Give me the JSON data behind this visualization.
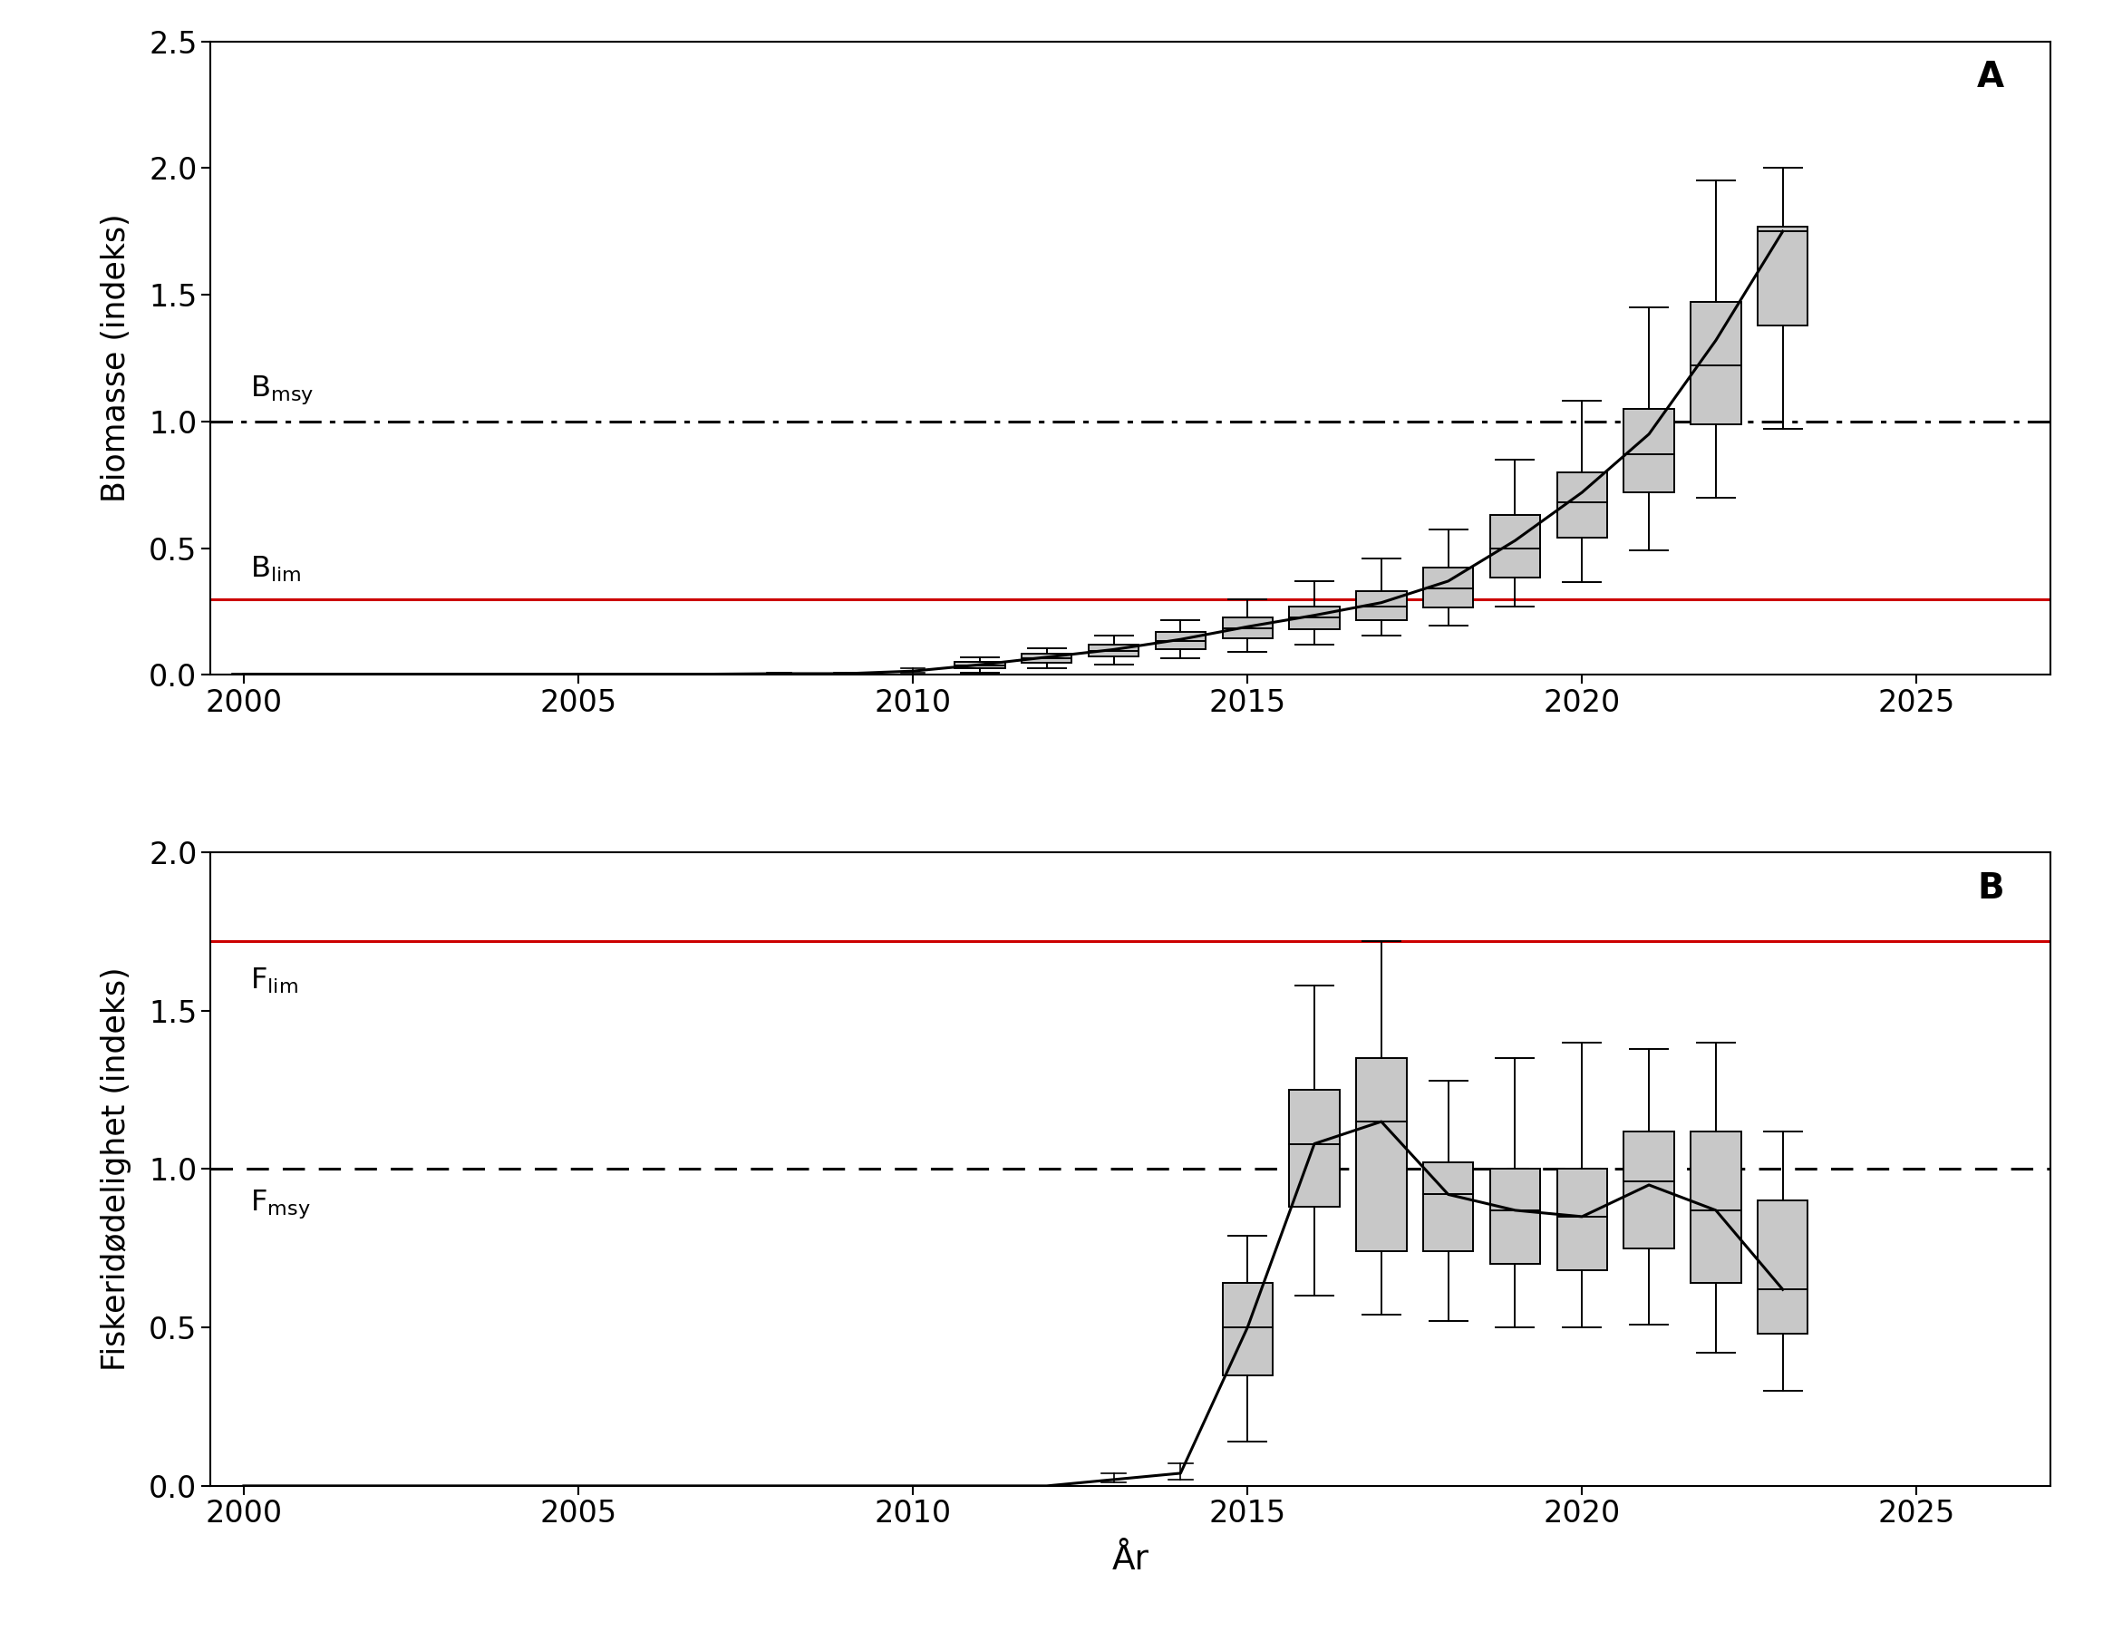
{
  "panel_A": {
    "title_label": "A",
    "ylabel": "Biomasse (indeks)",
    "ylim": [
      0.0,
      2.5
    ],
    "yticks": [
      0.0,
      0.5,
      1.0,
      1.5,
      2.0,
      2.5
    ],
    "bmsy": 1.0,
    "blim": 0.3,
    "line_years": [
      2000,
      2001,
      2002,
      2003,
      2004,
      2005,
      2006,
      2007,
      2008,
      2009,
      2010,
      2011,
      2012,
      2013,
      2014,
      2015,
      2016,
      2017,
      2018,
      2019,
      2020,
      2021,
      2022,
      2023
    ],
    "line_values": [
      0.003,
      0.003,
      0.003,
      0.003,
      0.003,
      0.003,
      0.003,
      0.003,
      0.005,
      0.005,
      0.015,
      0.04,
      0.07,
      0.1,
      0.14,
      0.19,
      0.235,
      0.285,
      0.37,
      0.53,
      0.72,
      0.95,
      1.32,
      1.75
    ],
    "box_years": [
      2011,
      2012,
      2013,
      2014,
      2015,
      2016,
      2017,
      2018,
      2019,
      2020,
      2021,
      2022,
      2023
    ],
    "box_medians": [
      0.038,
      0.065,
      0.095,
      0.135,
      0.185,
      0.225,
      0.27,
      0.34,
      0.5,
      0.68,
      0.87,
      1.22,
      1.75
    ],
    "box_q1": [
      0.025,
      0.048,
      0.072,
      0.1,
      0.145,
      0.18,
      0.215,
      0.265,
      0.385,
      0.54,
      0.72,
      0.99,
      1.38
    ],
    "box_q3": [
      0.052,
      0.084,
      0.118,
      0.17,
      0.225,
      0.27,
      0.33,
      0.425,
      0.63,
      0.8,
      1.05,
      1.47,
      1.77
    ],
    "box_whisker_low": [
      0.01,
      0.025,
      0.042,
      0.065,
      0.09,
      0.12,
      0.155,
      0.195,
      0.27,
      0.365,
      0.49,
      0.7,
      0.97
    ],
    "box_whisker_high": [
      0.07,
      0.105,
      0.155,
      0.215,
      0.3,
      0.37,
      0.46,
      0.575,
      0.85,
      1.08,
      1.45,
      1.95,
      2.0
    ],
    "ci_low": [
      0.002,
      0.002,
      0.002,
      0.002,
      0.002,
      0.002,
      0.002,
      0.002,
      0.003,
      0.003,
      0.008,
      0.022,
      0.045,
      0.07,
      0.095,
      0.13,
      0.165,
      0.205,
      0.28,
      0.42,
      0.57,
      0.75,
      1.02,
      1.38
    ],
    "ci_high": [
      0.005,
      0.005,
      0.005,
      0.005,
      0.005,
      0.005,
      0.005,
      0.005,
      0.008,
      0.008,
      0.025,
      0.058,
      0.095,
      0.13,
      0.175,
      0.245,
      0.305,
      0.37,
      0.48,
      0.65,
      0.9,
      1.15,
      1.6,
      2.0
    ]
  },
  "panel_B": {
    "title_label": "B",
    "ylabel": "Fiskeridødelighet (indeks)",
    "ylim": [
      0.0,
      2.0
    ],
    "yticks": [
      0.0,
      0.5,
      1.0,
      1.5,
      2.0
    ],
    "flim": 1.72,
    "fmsy": 1.0,
    "line_years": [
      2000,
      2001,
      2002,
      2003,
      2004,
      2005,
      2006,
      2007,
      2008,
      2009,
      2010,
      2011,
      2012,
      2013,
      2014,
      2015,
      2016,
      2017,
      2018,
      2019,
      2020,
      2021,
      2022,
      2023
    ],
    "line_values": [
      0.0,
      0.0,
      0.0,
      0.0,
      0.0,
      0.0,
      0.0,
      0.0,
      0.0,
      0.0,
      0.0,
      0.0,
      0.0,
      0.02,
      0.04,
      0.5,
      1.08,
      1.15,
      0.92,
      0.87,
      0.85,
      0.95,
      0.87,
      0.62
    ],
    "box_years": [
      2015,
      2016,
      2017,
      2018,
      2019,
      2020,
      2021,
      2022,
      2023
    ],
    "box_medians": [
      0.5,
      1.08,
      1.15,
      0.92,
      0.87,
      0.85,
      0.96,
      0.87,
      0.62
    ],
    "box_q1": [
      0.35,
      0.88,
      0.74,
      0.74,
      0.7,
      0.68,
      0.75,
      0.64,
      0.48
    ],
    "box_q3": [
      0.64,
      1.25,
      1.35,
      1.02,
      1.0,
      1.0,
      1.12,
      1.12,
      0.9
    ],
    "box_whisker_low": [
      0.14,
      0.6,
      0.54,
      0.52,
      0.5,
      0.5,
      0.51,
      0.42,
      0.3
    ],
    "box_whisker_high": [
      0.79,
      1.58,
      1.72,
      1.28,
      1.35,
      1.4,
      1.38,
      1.4,
      1.12
    ],
    "ci_low": [
      0.0,
      0.0,
      0.0,
      0.0,
      0.0,
      0.0,
      0.0,
      0.0,
      0.0,
      0.0,
      0.0,
      0.0,
      0.0,
      0.01,
      0.02,
      0.34,
      0.87,
      0.94,
      0.74,
      0.7,
      0.67,
      0.77,
      0.69,
      0.47
    ],
    "ci_high": [
      0.0,
      0.0,
      0.0,
      0.0,
      0.0,
      0.0,
      0.0,
      0.0,
      0.0,
      0.0,
      0.0,
      0.0,
      0.0,
      0.04,
      0.07,
      0.64,
      1.27,
      1.37,
      1.11,
      1.07,
      1.04,
      1.14,
      1.07,
      0.81
    ]
  },
  "xlim": [
    1999.5,
    2027
  ],
  "xticks": [
    2000,
    2005,
    2010,
    2015,
    2020,
    2025
  ],
  "xlabel": "År",
  "box_width": 0.75,
  "box_color": "#c8c8c8",
  "box_edge_color": "#000000",
  "line_color": "#000000",
  "ref_line_lw": 2.2,
  "background_color": "#ffffff"
}
